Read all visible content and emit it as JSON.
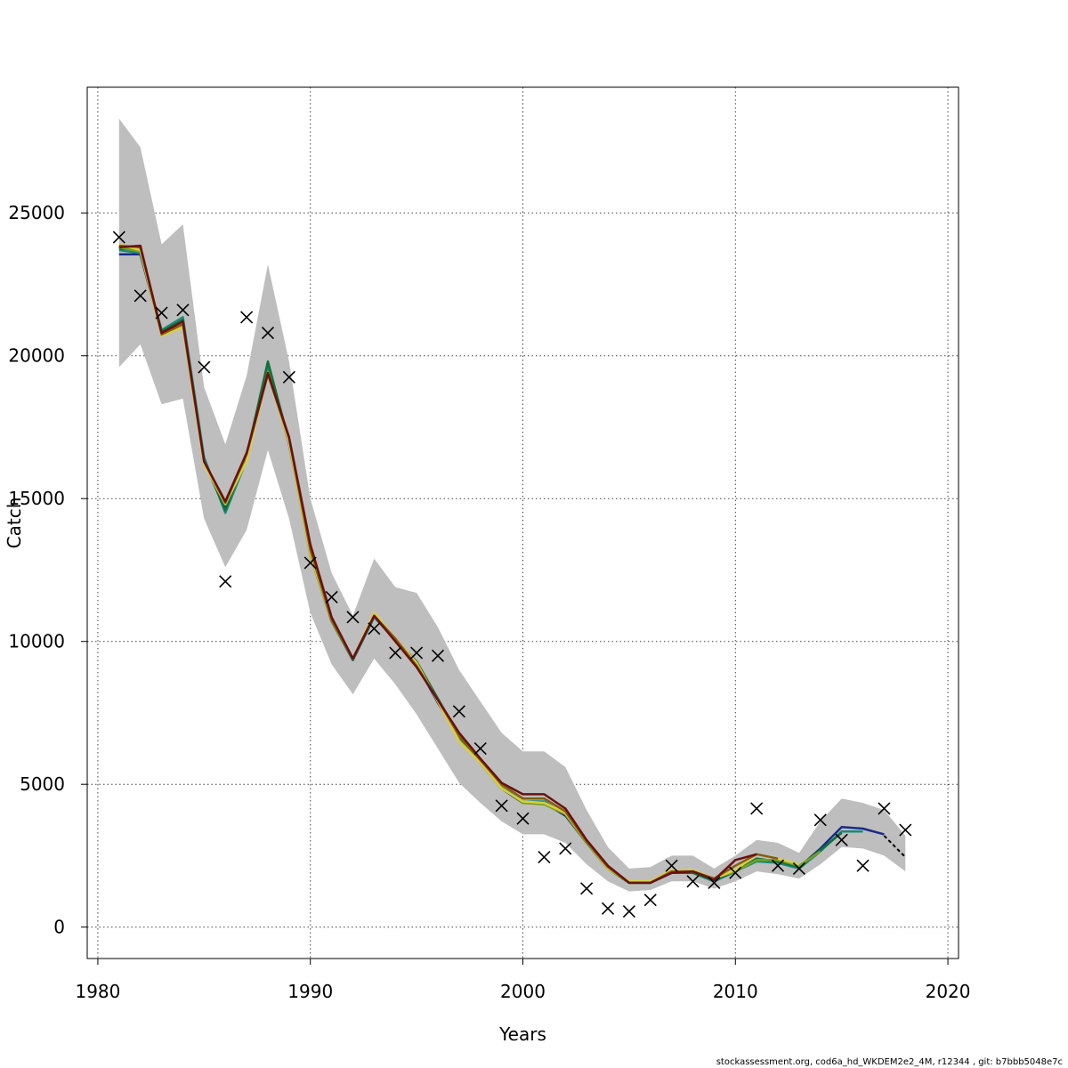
{
  "chart_data": {
    "type": "line",
    "xlabel": "Years",
    "ylabel": "Catch",
    "xlim": [
      1979.5,
      2020.5
    ],
    "ylim": [
      -1100,
      29400
    ],
    "xticks": [
      1980,
      1990,
      2000,
      2010,
      2020
    ],
    "yticks": [
      0,
      5000,
      10000,
      15000,
      20000,
      25000
    ],
    "grid": true,
    "credit": "stockassessment.org, cod6a_hd_WKDEM2e2_4M, r12344 , git: b7bbb5048e7c",
    "band": {
      "color": "#bebebe",
      "x": [
        1981,
        1982,
        1983,
        1984,
        1985,
        1986,
        1987,
        1988,
        1989,
        1990,
        1991,
        1992,
        1993,
        1994,
        1995,
        1996,
        1997,
        1998,
        1999,
        2000,
        2001,
        2002,
        2003,
        2004,
        2005,
        2006,
        2007,
        2008,
        2009,
        2010,
        2011,
        2012,
        2013,
        2014,
        2015,
        2016,
        2017,
        2018
      ],
      "upper": [
        28300,
        27300,
        23900,
        24600,
        18900,
        16900,
        19300,
        23200,
        19800,
        15000,
        12400,
        10900,
        12900,
        11900,
        11700,
        10500,
        9000,
        7900,
        6800,
        6150,
        6150,
        5600,
        4100,
        2800,
        2050,
        2100,
        2500,
        2500,
        2050,
        2500,
        3050,
        2950,
        2600,
        3700,
        4500,
        4350,
        4100,
        3200
      ],
      "lower": [
        19600,
        20400,
        18300,
        18500,
        14300,
        12600,
        13900,
        16700,
        14300,
        11000,
        9200,
        8150,
        9400,
        8500,
        7450,
        6250,
        5050,
        4350,
        3700,
        3250,
        3250,
        2950,
        2200,
        1600,
        1250,
        1300,
        1600,
        1600,
        1350,
        1600,
        1950,
        1850,
        1700,
        2200,
        2800,
        2750,
        2500,
        1950
      ]
    },
    "series": [
      {
        "color": "#1a2a8a",
        "x": [
          1981,
          1982,
          1983,
          1984,
          1985,
          1986,
          1987,
          1988,
          1989,
          1990,
          1991,
          1992,
          1993,
          1994,
          1995,
          1996,
          1997,
          1998,
          1999,
          2000,
          2001,
          2002,
          2003,
          2004,
          2005,
          2006,
          2007,
          2008,
          2009,
          2010,
          2011,
          2012,
          2013,
          2014,
          2015,
          2016,
          2017
        ],
        "values": [
          23550,
          23550,
          20800,
          21250,
          16350,
          14700,
          16450,
          19550,
          16900,
          13150,
          10700,
          9350,
          10850,
          10050,
          9200,
          7850,
          6650,
          5750,
          4850,
          4350,
          4350,
          3900,
          2950,
          2050,
          1550,
          1550,
          1900,
          1900,
          1600,
          1950,
          2350,
          2300,
          2100,
          2750,
          3500,
          3450,
          3250
        ]
      },
      {
        "color": "#1a8a7a",
        "x": [
          1981,
          1982,
          1983,
          1984,
          1985,
          1986,
          1987,
          1988,
          1989,
          1990,
          1991,
          1992,
          1993,
          1994,
          1995,
          1996,
          1997,
          1998,
          1999,
          2000,
          2001,
          2002,
          2003,
          2004,
          2005,
          2006,
          2007,
          2008,
          2009,
          2010,
          2011,
          2012,
          2013,
          2014,
          2015,
          2016
        ],
        "values": [
          23700,
          23600,
          20900,
          21350,
          16450,
          14500,
          16350,
          19700,
          16950,
          13050,
          10750,
          9400,
          10850,
          10050,
          9250,
          7950,
          6700,
          5800,
          4900,
          4400,
          4400,
          3950,
          2950,
          2050,
          1550,
          1550,
          1900,
          1900,
          1600,
          1950,
          2300,
          2250,
          2050,
          2650,
          3350,
          3350
        ]
      },
      {
        "color": "#10703a",
        "x": [
          1981,
          1982,
          1983,
          1984,
          1985,
          1986,
          1987,
          1988,
          1989,
          1990,
          1991,
          1992,
          1993,
          1994,
          1995,
          1996,
          1997,
          1998,
          1999,
          2000,
          2001,
          2002,
          2003,
          2004,
          2005,
          2006,
          2007,
          2008,
          2009,
          2010,
          2011,
          2012,
          2013,
          2014,
          2015
        ],
        "values": [
          23750,
          23750,
          20850,
          21250,
          16300,
          14600,
          16500,
          19800,
          17000,
          13050,
          10700,
          9350,
          10900,
          10050,
          9300,
          8000,
          6700,
          5800,
          4900,
          4350,
          4350,
          3950,
          2950,
          2050,
          1550,
          1550,
          1900,
          1900,
          1650,
          1950,
          2400,
          2300,
          2100,
          2700,
          3300
        ]
      },
      {
        "color": "#7aa01a",
        "x": [
          1981,
          1982,
          1983,
          1984,
          1985,
          1986,
          1987,
          1988,
          1989,
          1990,
          1991,
          1992,
          1993,
          1994,
          1995,
          1996,
          1997,
          1998,
          1999,
          2000,
          2001,
          2002,
          2003,
          2004,
          2005,
          2006,
          2007,
          2008,
          2009,
          2010,
          2011,
          2012,
          2013,
          2014
        ],
        "values": [
          23800,
          23650,
          20750,
          21100,
          16250,
          14800,
          16400,
          19450,
          16950,
          13000,
          10700,
          9400,
          10950,
          10100,
          9250,
          7900,
          6550,
          5750,
          4900,
          4350,
          4300,
          3950,
          2950,
          2050,
          1550,
          1550,
          1950,
          1950,
          1700,
          1950,
          2350,
          2350,
          2150,
          2650
        ]
      },
      {
        "color": "#d8d040",
        "x": [
          1981,
          1982,
          1983,
          1984,
          1985,
          1986,
          1987,
          1988,
          1989,
          1990,
          1991,
          1992,
          1993,
          1994,
          1995,
          1996,
          1997,
          1998,
          1999,
          2000,
          2001,
          2002,
          2003,
          2004,
          2005,
          2006,
          2007,
          2008,
          2009,
          2010,
          2011,
          2012,
          2013
        ],
        "values": [
          23900,
          23700,
          20700,
          21000,
          16200,
          14800,
          16300,
          19400,
          16950,
          13050,
          10750,
          9400,
          11000,
          10100,
          9250,
          7900,
          6500,
          5750,
          4850,
          4400,
          4350,
          4000,
          3000,
          2050,
          1600,
          1600,
          2000,
          2000,
          1700,
          2000,
          2550,
          2400,
          2200
        ]
      },
      {
        "color": "#8a5a10",
        "x": [
          1981,
          1982,
          1983,
          1984,
          1985,
          1986,
          1987,
          1988,
          1989,
          1990,
          1991,
          1992,
          1993,
          1994,
          1995,
          1996,
          1997,
          1998,
          1999,
          2000,
          2001,
          2002,
          2003,
          2004,
          2005,
          2006,
          2007,
          2008,
          2009,
          2010,
          2011,
          2012
        ],
        "values": [
          23850,
          23800,
          20750,
          21100,
          16300,
          14850,
          16550,
          19350,
          17100,
          13200,
          10750,
          9400,
          10900,
          10100,
          9150,
          7950,
          6700,
          5850,
          5000,
          4500,
          4500,
          4050,
          3000,
          2100,
          1550,
          1550,
          1950,
          1950,
          1700,
          2150,
          2550,
          2400
        ]
      },
      {
        "color": "#6a1010",
        "x": [
          1981,
          1982,
          1983,
          1984,
          1985,
          1986,
          1987,
          1988,
          1989,
          1990,
          1991,
          1992,
          1993,
          1994,
          1995,
          1996,
          1997,
          1998,
          1999,
          2000,
          2001,
          2002,
          2003,
          2004,
          2005,
          2006,
          2007,
          2008,
          2009,
          2010,
          2011
        ],
        "values": [
          23800,
          23850,
          20800,
          21200,
          16300,
          14900,
          16600,
          19400,
          17150,
          13400,
          10850,
          9400,
          10900,
          10000,
          9100,
          7950,
          6800,
          5900,
          5050,
          4650,
          4650,
          4150,
          3050,
          2150,
          1550,
          1550,
          1900,
          1950,
          1650,
          2350,
          2550
        ]
      },
      {
        "color": "#000000",
        "dashed": true,
        "x": [
          2017,
          2018
        ],
        "values": [
          3200,
          2450
        ]
      }
    ],
    "observations": {
      "marker": "x",
      "x": [
        1981,
        1982,
        1983,
        1984,
        1985,
        1986,
        1987,
        1988,
        1989,
        1990,
        1991,
        1992,
        1993,
        1994,
        1995,
        1996,
        1997,
        1998,
        1999,
        2000,
        2001,
        2002,
        2003,
        2004,
        2005,
        2006,
        2007,
        2008,
        2009,
        2010,
        2011,
        2012,
        2013,
        2014,
        2015,
        2016,
        2017,
        2018
      ],
      "values": [
        24150,
        22100,
        21500,
        21600,
        19600,
        12100,
        21350,
        20800,
        19250,
        12750,
        11550,
        10850,
        10450,
        9600,
        9600,
        9500,
        7550,
        6250,
        4250,
        3800,
        2450,
        2750,
        1350,
        650,
        550,
        950,
        2150,
        1600,
        1550,
        1900,
        4150,
        2150,
        2050,
        3750,
        3050,
        2150,
        4150,
        3400
      ]
    }
  }
}
